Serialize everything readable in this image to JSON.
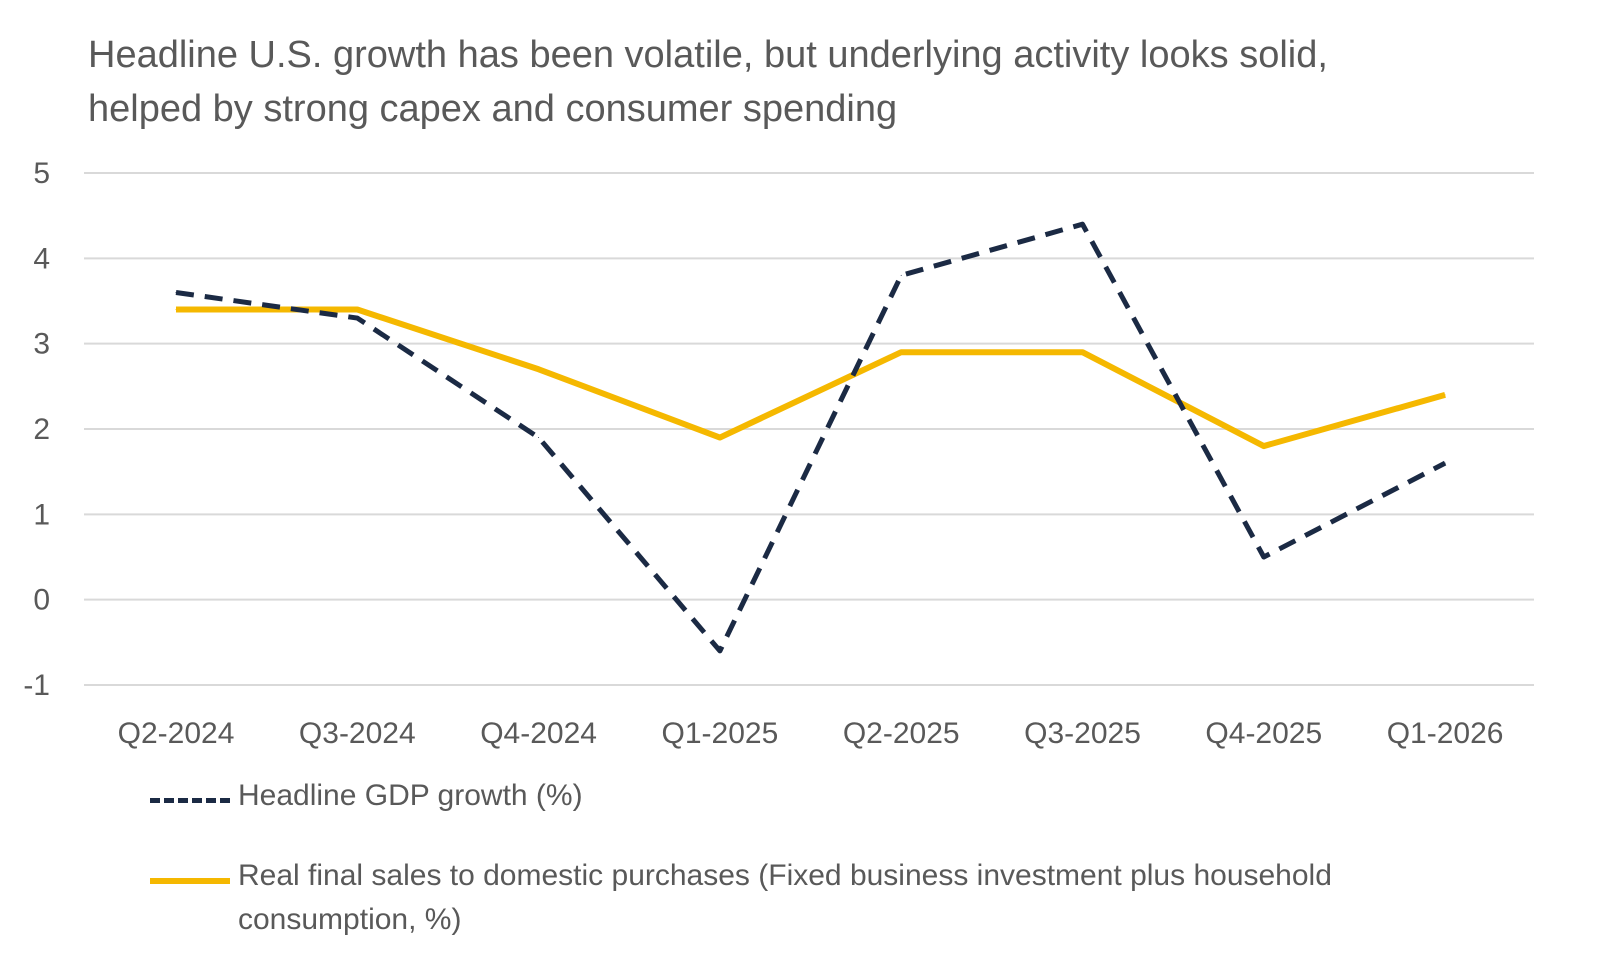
{
  "chart_data": {
    "type": "line",
    "title": "Headline U.S. growth has been volatile, but underlying activity looks solid, helped by strong capex and consumer spending",
    "xlabel": "",
    "ylabel": "",
    "categories": [
      "Q2-2024",
      "Q3-2024",
      "Q4-2024",
      "Q1-2025",
      "Q2-2025",
      "Q3-2025",
      "Q4-2025",
      "Q1-2026"
    ],
    "yticks": [
      "5",
      "4",
      "3",
      "2",
      "1",
      "0",
      "-1"
    ],
    "ylim": [
      -1,
      5
    ],
    "grid": true,
    "legend_position": "bottom",
    "series": [
      {
        "name": "Headline GDP growth (%)",
        "values": [
          3.6,
          3.3,
          1.9,
          -0.6,
          3.8,
          4.4,
          0.5,
          1.6
        ],
        "color": "#1b2a44",
        "style": "dashed"
      },
      {
        "name": "Real final sales to domestic purchases (Fixed business investment plus household consumption, %)",
        "values": [
          3.4,
          3.4,
          2.7,
          1.9,
          2.9,
          2.9,
          1.8,
          2.4
        ],
        "color": "#f5b800",
        "style": "solid"
      }
    ]
  }
}
